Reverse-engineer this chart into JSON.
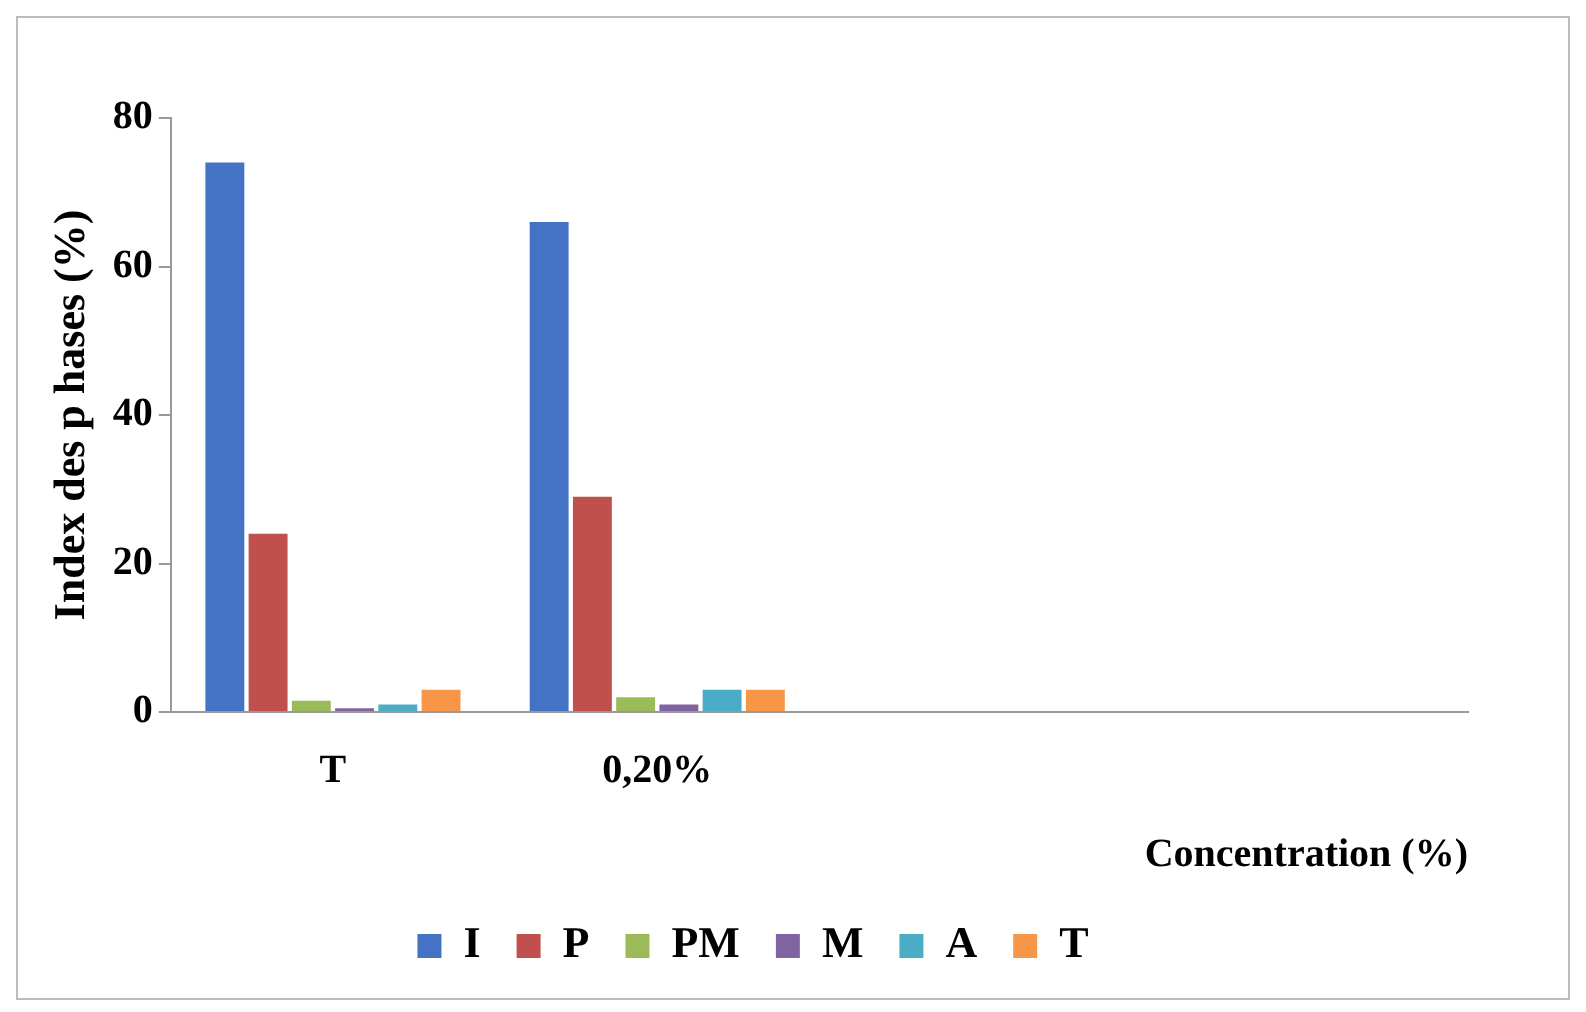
{
  "chart_data": {
    "type": "bar",
    "ylabel": "Index des p hases (%)",
    "xlabel": "Concentration (%)",
    "categories": [
      "T",
      "0,20%",
      null,
      null
    ],
    "series": [
      {
        "name": "I",
        "color": "#4472c4",
        "values": [
          74,
          66,
          null,
          null
        ]
      },
      {
        "name": "P",
        "color": "#c0504d",
        "values": [
          24,
          29,
          null,
          null
        ]
      },
      {
        "name": "PM",
        "color": "#9bbb59",
        "values": [
          1.5,
          2,
          null,
          null
        ]
      },
      {
        "name": "M",
        "color": "#8064a2",
        "values": [
          0.5,
          1,
          null,
          null
        ]
      },
      {
        "name": "A",
        "color": "#4bacc6",
        "values": [
          1,
          3,
          null,
          null
        ]
      },
      {
        "name": "T",
        "color": "#f79646",
        "values": [
          3,
          3,
          null,
          null
        ]
      }
    ],
    "ylim": [
      0,
      80
    ],
    "yticks": [
      0,
      20,
      40,
      60,
      80
    ],
    "grid": false,
    "legend": "bottom"
  }
}
